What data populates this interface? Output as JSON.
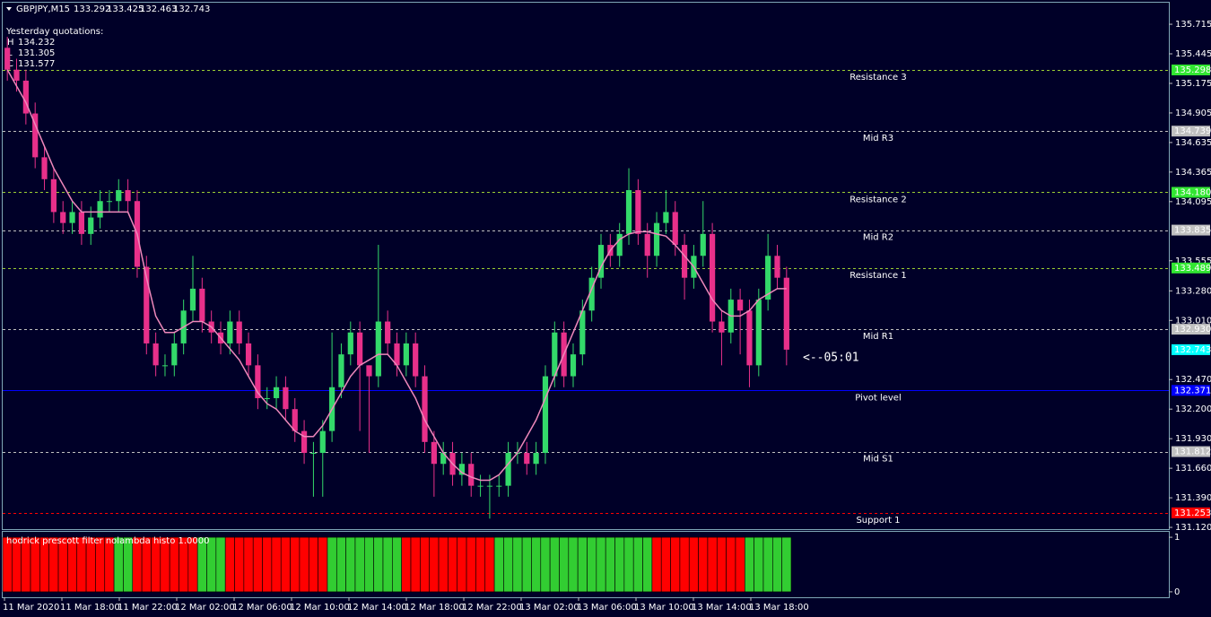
{
  "chart_data": {
    "type": "candlestick",
    "symbol": "GBPJPY,M15",
    "quote": [
      133.292,
      133.425,
      132.463,
      132.743
    ],
    "yesterday": {
      "title": "Yesterday quotations:",
      "items": [
        {
          "label": "H",
          "value": 134.232
        },
        {
          "label": "L",
          "value": 131.305
        },
        {
          "label": "C",
          "value": 131.577
        }
      ]
    },
    "annotation": "<--05:01",
    "bid": 132.743,
    "ylim": [
      131.104,
      135.912
    ],
    "yticks": [
      135.715,
      135.445,
      135.175,
      134.905,
      134.635,
      134.365,
      134.095,
      133.555,
      {
        "value": 133.28,
        "label": "133.280"
      },
      {
        "value": 133.01,
        "label": "133.010"
      },
      {
        "value": 132.47,
        "label": "132.470"
      },
      {
        "value": 132.2,
        "label": "132.200"
      },
      {
        "value": 131.93,
        "label": "131.930"
      },
      {
        "value": 131.66,
        "label": "131.660"
      },
      {
        "value": 131.39,
        "label": "131.390"
      },
      {
        "value": 131.12,
        "label": "131.120"
      }
    ],
    "time_labels": [
      "11 Mar 2020",
      "11 Mar 18:00",
      "11 Mar 22:00",
      "12 Mar 02:00",
      "12 Mar 06:00",
      "12 Mar 10:00",
      "12 Mar 14:00",
      "12 Mar 18:00",
      "12 Mar 22:00",
      "13 Mar 02:00",
      "13 Mar 06:00",
      "13 Mar 10:00",
      "13 Mar 14:00",
      "13 Mar 18:00"
    ],
    "up_color": "#33d96a",
    "down_color": "#e8308a",
    "open": [
      135.5,
      135.3,
      135.2,
      134.9,
      134.5,
      134.3,
      134.0,
      133.9,
      134.0,
      133.8,
      133.95,
      134.1,
      134.1,
      134.2,
      134.1,
      133.5,
      132.8,
      132.6,
      132.6,
      132.8,
      133.1,
      133.3,
      133.0,
      132.9,
      132.8,
      133.0,
      132.8,
      132.6,
      132.3,
      132.3,
      132.4,
      132.2,
      132.0,
      131.8,
      131.8,
      132.0,
      132.4,
      132.7,
      132.9,
      132.6,
      132.5,
      133.0,
      132.8,
      132.6,
      132.8,
      132.5,
      131.9,
      131.7,
      131.8,
      131.6,
      131.7,
      131.5,
      131.5,
      131.5,
      131.5,
      131.8,
      131.8,
      131.7,
      131.8,
      132.5,
      132.9,
      132.5,
      132.7,
      133.1,
      133.4,
      133.7,
      133.6,
      133.8,
      134.2,
      133.8,
      133.6,
      133.9,
      134.0,
      133.7,
      133.4,
      133.6,
      133.8,
      133.0,
      132.9,
      133.2,
      133.1,
      132.6,
      133.2,
      133.6,
      133.4
    ],
    "high": [
      135.6,
      135.4,
      135.3,
      135.0,
      134.6,
      134.4,
      134.1,
      134.1,
      134.1,
      134.05,
      134.2,
      134.2,
      134.3,
      134.3,
      134.2,
      133.6,
      132.9,
      132.7,
      132.9,
      133.2,
      133.6,
      133.4,
      133.1,
      133.0,
      133.1,
      133.1,
      132.9,
      132.7,
      132.4,
      132.5,
      132.5,
      132.3,
      132.1,
      131.9,
      132.1,
      132.9,
      132.8,
      133.0,
      133.0,
      132.6,
      133.7,
      133.1,
      132.9,
      132.9,
      132.9,
      132.6,
      132.0,
      131.9,
      131.9,
      131.8,
      131.8,
      131.6,
      131.6,
      131.6,
      131.9,
      131.9,
      131.9,
      131.9,
      132.6,
      133.0,
      133.0,
      132.8,
      133.2,
      133.5,
      133.8,
      133.8,
      133.9,
      134.4,
      134.3,
      133.9,
      134.0,
      134.2,
      134.1,
      133.8,
      133.7,
      134.1,
      133.9,
      133.1,
      133.3,
      133.3,
      133.2,
      133.3,
      133.8,
      133.7,
      133.5
    ],
    "low": [
      135.2,
      135.1,
      134.8,
      134.4,
      134.2,
      133.9,
      133.8,
      133.8,
      133.7,
      133.7,
      133.85,
      134.0,
      134.0,
      134.0,
      133.4,
      132.7,
      132.5,
      132.5,
      132.5,
      132.7,
      133.0,
      132.9,
      132.8,
      132.7,
      132.7,
      132.7,
      132.5,
      132.2,
      132.2,
      132.2,
      132.1,
      131.9,
      131.7,
      131.4,
      131.4,
      131.9,
      132.3,
      132.6,
      132.0,
      131.8,
      132.4,
      132.7,
      132.5,
      132.5,
      132.4,
      131.8,
      131.4,
      131.6,
      131.5,
      131.5,
      131.4,
      131.4,
      131.2,
      131.4,
      131.4,
      131.7,
      131.6,
      131.6,
      131.7,
      132.4,
      132.4,
      132.4,
      132.6,
      133.0,
      133.3,
      133.5,
      133.5,
      133.7,
      133.7,
      133.4,
      133.5,
      133.8,
      133.6,
      133.2,
      133.3,
      133.5,
      132.9,
      132.6,
      132.8,
      132.7,
      132.4,
      132.5,
      133.1,
      133.3,
      132.6
    ],
    "close": [
      135.3,
      135.2,
      134.9,
      134.5,
      134.3,
      134.0,
      133.9,
      134.0,
      133.8,
      133.95,
      134.1,
      134.1,
      134.2,
      134.1,
      133.5,
      132.8,
      132.6,
      132.6,
      132.8,
      133.1,
      133.3,
      133.0,
      132.9,
      132.8,
      133.0,
      132.8,
      132.6,
      132.3,
      132.3,
      132.4,
      132.2,
      132.0,
      131.8,
      131.8,
      132.0,
      132.4,
      132.7,
      132.9,
      132.6,
      132.5,
      133.0,
      132.8,
      132.6,
      132.8,
      132.5,
      131.9,
      131.7,
      131.8,
      131.6,
      131.7,
      131.5,
      131.5,
      131.5,
      131.5,
      131.8,
      131.8,
      131.7,
      131.8,
      132.5,
      132.9,
      132.5,
      132.7,
      133.1,
      133.4,
      133.7,
      133.6,
      133.8,
      134.2,
      133.8,
      133.6,
      133.9,
      134.0,
      133.7,
      133.4,
      133.6,
      133.8,
      133.0,
      132.9,
      133.2,
      133.1,
      132.6,
      133.2,
      133.6,
      133.4,
      132.743
    ],
    "smooth_color": "#ee88bb",
    "smooth": [
      135.3,
      135.15,
      135.0,
      134.8,
      134.6,
      134.4,
      134.25,
      134.1,
      134.0,
      134.0,
      134.0,
      134.0,
      134.0,
      134.0,
      133.8,
      133.4,
      133.05,
      132.9,
      132.9,
      132.95,
      133.0,
      133.0,
      132.95,
      132.85,
      132.75,
      132.65,
      132.5,
      132.35,
      132.25,
      132.2,
      132.1,
      132.0,
      131.95,
      131.95,
      132.05,
      132.2,
      132.35,
      132.5,
      132.6,
      132.65,
      132.7,
      132.7,
      132.6,
      132.45,
      132.3,
      132.1,
      131.95,
      131.8,
      131.7,
      131.62,
      131.58,
      131.55,
      131.55,
      131.6,
      131.7,
      131.8,
      131.95,
      132.1,
      132.3,
      132.5,
      132.7,
      132.9,
      133.1,
      133.3,
      133.5,
      133.65,
      133.75,
      133.8,
      133.82,
      133.82,
      133.8,
      133.78,
      133.7,
      133.6,
      133.5,
      133.35,
      133.2,
      133.1,
      133.05,
      133.05,
      133.1,
      133.2,
      133.25,
      133.3,
      133.3
    ],
    "levels": [
      {
        "name": "Resistance 3",
        "value": 135.298,
        "color": "#9acd32",
        "tag_color": "#32e632",
        "style": "dashed"
      },
      {
        "name": "Mid R3",
        "value": 134.739,
        "color": "#c0c0c0",
        "tag_color": "#c0c0c0",
        "style": "dashed"
      },
      {
        "name": "Resistance 2",
        "value": 134.18,
        "color": "#9acd32",
        "tag_color": "#32e632",
        "style": "dashed",
        "value_label": "134.180"
      },
      {
        "name": "Mid R2",
        "value": 133.835,
        "color": "#c0c0c0",
        "tag_color": "#c0c0c0",
        "style": "dashed"
      },
      {
        "name": "Resistance 1",
        "value": 133.489,
        "color": "#9acd32",
        "tag_color": "#32e632",
        "style": "dashed"
      },
      {
        "name": "Mid R1",
        "value": 132.93,
        "color": "#c0c0c0",
        "tag_color": "#c0c0c0",
        "style": "dashed",
        "value_label": "132.930"
      },
      {
        "name": "Pivot level",
        "value": 132.371,
        "color": "#0000ff",
        "tag_color": "#0000ff",
        "style": "solid"
      },
      {
        "name": "Mid S1",
        "value": 131.812,
        "color": "#c0c0c0",
        "tag_color": "#c0c0c0",
        "style": "dashed"
      },
      {
        "name": "Support 1",
        "value": 131.253,
        "color": "#ff0000",
        "tag_color": "#ff0000",
        "style": "dashed"
      }
    ],
    "indicator": {
      "title": "hodrick prescott filter nolambda histo 1.0000",
      "ylim": [
        -0.1,
        1.1
      ],
      "yticks": [
        1,
        0
      ],
      "colors": {
        "up": "#32cd32",
        "down": "#ff0000"
      },
      "values": [
        1,
        1,
        1,
        1,
        1,
        1,
        1,
        1,
        1,
        1,
        1,
        1,
        1,
        1,
        1,
        1,
        1,
        1,
        1,
        1,
        1,
        1,
        1,
        1,
        1,
        1,
        1,
        1,
        1,
        1,
        1,
        1,
        1,
        1,
        1,
        1,
        1,
        1,
        1,
        1,
        1,
        1,
        1,
        1,
        1,
        1,
        1,
        1,
        1,
        1,
        1,
        1,
        1,
        1,
        1,
        1,
        1,
        1,
        1,
        1,
        1,
        1,
        1,
        1,
        1,
        1,
        1,
        1,
        1,
        1,
        1,
        1,
        1,
        1,
        1,
        1,
        1,
        1,
        1,
        1,
        1,
        1,
        1,
        1,
        1
      ],
      "trend": [
        "down",
        "down",
        "down",
        "down",
        "down",
        "down",
        "down",
        "down",
        "down",
        "down",
        "down",
        "down",
        "up",
        "up",
        "down",
        "down",
        "down",
        "down",
        "down",
        "down",
        "down",
        "up",
        "up",
        "up",
        "down",
        "down",
        "down",
        "down",
        "down",
        "down",
        "down",
        "down",
        "down",
        "down",
        "down",
        "up",
        "up",
        "up",
        "up",
        "up",
        "up",
        "up",
        "up",
        "down",
        "down",
        "down",
        "down",
        "down",
        "down",
        "down",
        "down",
        "down",
        "down",
        "up",
        "up",
        "up",
        "up",
        "up",
        "up",
        "up",
        "up",
        "up",
        "up",
        "up",
        "up",
        "up",
        "up",
        "up",
        "up",
        "up",
        "down",
        "down",
        "down",
        "down",
        "down",
        "down",
        "down",
        "down",
        "down",
        "down",
        "up",
        "up",
        "up",
        "up",
        "up"
      ]
    }
  }
}
